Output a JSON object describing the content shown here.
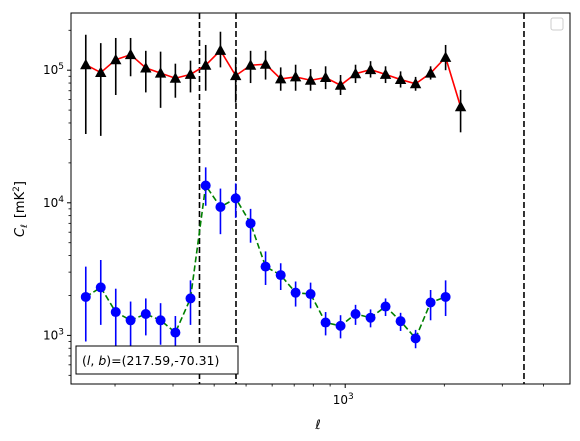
{
  "chart_data": {
    "type": "scatter",
    "title": "",
    "xlabel": "ℓ",
    "ylabel_main": "C",
    "ylabel_sub": "ℓ",
    "ylabel_unit": "[mK",
    "ylabel_unit_sup": "2",
    "ylabel_unit_close": "]",
    "xscale": "log",
    "yscale": "log",
    "xlim": [
      147,
      4816
    ],
    "ylim": [
      430,
      270000
    ],
    "x_ticks": [
      {
        "value": 1000,
        "base": "10",
        "exp": "3"
      }
    ],
    "y_ticks": [
      {
        "value": 1000,
        "base": "10",
        "exp": "3"
      },
      {
        "value": 10000,
        "base": "10",
        "exp": "4"
      },
      {
        "value": 100000,
        "base": "10",
        "exp": "5"
      }
    ],
    "legend": {
      "position": "upper right",
      "entries": []
    },
    "annotation": {
      "label": "(l, b)=(217.59,-70.31)",
      "l": "l",
      "b": "b",
      "values": "=(217.59,-70.31)"
    },
    "vlines": [
      {
        "x": 361,
        "style": "dashed",
        "color": "#000000"
      },
      {
        "x": 466,
        "style": "dashed",
        "color": "#000000"
      },
      {
        "x": 3491,
        "style": "dashed",
        "color": "#000000"
      }
    ],
    "series": [
      {
        "color": "#ff0000",
        "marker": "triangle",
        "marker_color": "#000000",
        "errorbar_color": "#000000",
        "linestyle": "solid",
        "points": [
          {
            "x": 163,
            "y": 110000,
            "ylo": 33000,
            "yhi": 185000
          },
          {
            "x": 181,
            "y": 96000,
            "ylo": 32000,
            "yhi": 160000
          },
          {
            "x": 201,
            "y": 120000,
            "ylo": 65000,
            "yhi": 175000
          },
          {
            "x": 223,
            "y": 131000,
            "ylo": 90000,
            "yhi": 175000
          },
          {
            "x": 248,
            "y": 104000,
            "ylo": 68000,
            "yhi": 140000
          },
          {
            "x": 275,
            "y": 95000,
            "ylo": 52000,
            "yhi": 138000
          },
          {
            "x": 305,
            "y": 87000,
            "ylo": 62000,
            "yhi": 112000
          },
          {
            "x": 339,
            "y": 93000,
            "ylo": 68000,
            "yhi": 118000
          },
          {
            "x": 377,
            "y": 109000,
            "ylo": 70000,
            "yhi": 155000
          },
          {
            "x": 418,
            "y": 141000,
            "ylo": 105000,
            "yhi": 195000
          },
          {
            "x": 465,
            "y": 91000,
            "ylo": 57000,
            "yhi": 126000
          },
          {
            "x": 516,
            "y": 109000,
            "ylo": 80000,
            "yhi": 140000
          },
          {
            "x": 573,
            "y": 111000,
            "ylo": 85000,
            "yhi": 140000
          },
          {
            "x": 637,
            "y": 86000,
            "ylo": 70000,
            "yhi": 105000
          },
          {
            "x": 707,
            "y": 89000,
            "ylo": 70000,
            "yhi": 110000
          },
          {
            "x": 785,
            "y": 84000,
            "ylo": 70000,
            "yhi": 102000
          },
          {
            "x": 872,
            "y": 88000,
            "ylo": 72000,
            "yhi": 107000
          },
          {
            "x": 968,
            "y": 77000,
            "ylo": 65000,
            "yhi": 92000
          },
          {
            "x": 1075,
            "y": 94000,
            "ylo": 80000,
            "yhi": 110000
          },
          {
            "x": 1194,
            "y": 101000,
            "ylo": 88000,
            "yhi": 117000
          },
          {
            "x": 1326,
            "y": 93000,
            "ylo": 80000,
            "yhi": 107000
          },
          {
            "x": 1473,
            "y": 85000,
            "ylo": 74000,
            "yhi": 98000
          },
          {
            "x": 1636,
            "y": 79000,
            "ylo": 70000,
            "yhi": 89000
          },
          {
            "x": 1817,
            "y": 95000,
            "ylo": 85000,
            "yhi": 107000
          },
          {
            "x": 2018,
            "y": 125000,
            "ylo": 100000,
            "yhi": 155000
          },
          {
            "x": 2241,
            "y": 53000,
            "ylo": 34000,
            "yhi": 71000
          }
        ]
      },
      {
        "color": "#008000",
        "marker": "circle",
        "marker_color": "#0000ff",
        "errorbar_color": "#0000ff",
        "linestyle": "dashed",
        "points": [
          {
            "x": 163,
            "y": 1950,
            "ylo": 900,
            "yhi": 3300
          },
          {
            "x": 181,
            "y": 2300,
            "ylo": 1200,
            "yhi": 3700
          },
          {
            "x": 201,
            "y": 1500,
            "ylo": 750,
            "yhi": 2250
          },
          {
            "x": 223,
            "y": 1300,
            "ylo": 800,
            "yhi": 1800
          },
          {
            "x": 248,
            "y": 1450,
            "ylo": 1000,
            "yhi": 1900
          },
          {
            "x": 275,
            "y": 1300,
            "ylo": 850,
            "yhi": 1750
          },
          {
            "x": 305,
            "y": 1050,
            "ylo": 700,
            "yhi": 1400
          },
          {
            "x": 339,
            "y": 1900,
            "ylo": 1200,
            "yhi": 2600
          },
          {
            "x": 377,
            "y": 13500,
            "ylo": 9500,
            "yhi": 18500
          },
          {
            "x": 418,
            "y": 9300,
            "ylo": 5800,
            "yhi": 12800
          },
          {
            "x": 465,
            "y": 10800,
            "ylo": 7700,
            "yhi": 14000
          },
          {
            "x": 516,
            "y": 7000,
            "ylo": 5000,
            "yhi": 9000
          },
          {
            "x": 573,
            "y": 3300,
            "ylo": 2400,
            "yhi": 4300
          },
          {
            "x": 637,
            "y": 2850,
            "ylo": 2200,
            "yhi": 3500
          },
          {
            "x": 707,
            "y": 2100,
            "ylo": 1650,
            "yhi": 2550
          },
          {
            "x": 785,
            "y": 2050,
            "ylo": 1600,
            "yhi": 2500
          },
          {
            "x": 872,
            "y": 1250,
            "ylo": 1000,
            "yhi": 1500
          },
          {
            "x": 968,
            "y": 1180,
            "ylo": 950,
            "yhi": 1420
          },
          {
            "x": 1075,
            "y": 1450,
            "ylo": 1200,
            "yhi": 1700
          },
          {
            "x": 1194,
            "y": 1360,
            "ylo": 1150,
            "yhi": 1570
          },
          {
            "x": 1326,
            "y": 1650,
            "ylo": 1400,
            "yhi": 1900
          },
          {
            "x": 1473,
            "y": 1280,
            "ylo": 1080,
            "yhi": 1480
          },
          {
            "x": 1636,
            "y": 950,
            "ylo": 800,
            "yhi": 1100
          },
          {
            "x": 1817,
            "y": 1770,
            "ylo": 1300,
            "yhi": 2200
          },
          {
            "x": 2018,
            "y": 1950,
            "ylo": 1400,
            "yhi": 2600
          }
        ]
      }
    ]
  }
}
